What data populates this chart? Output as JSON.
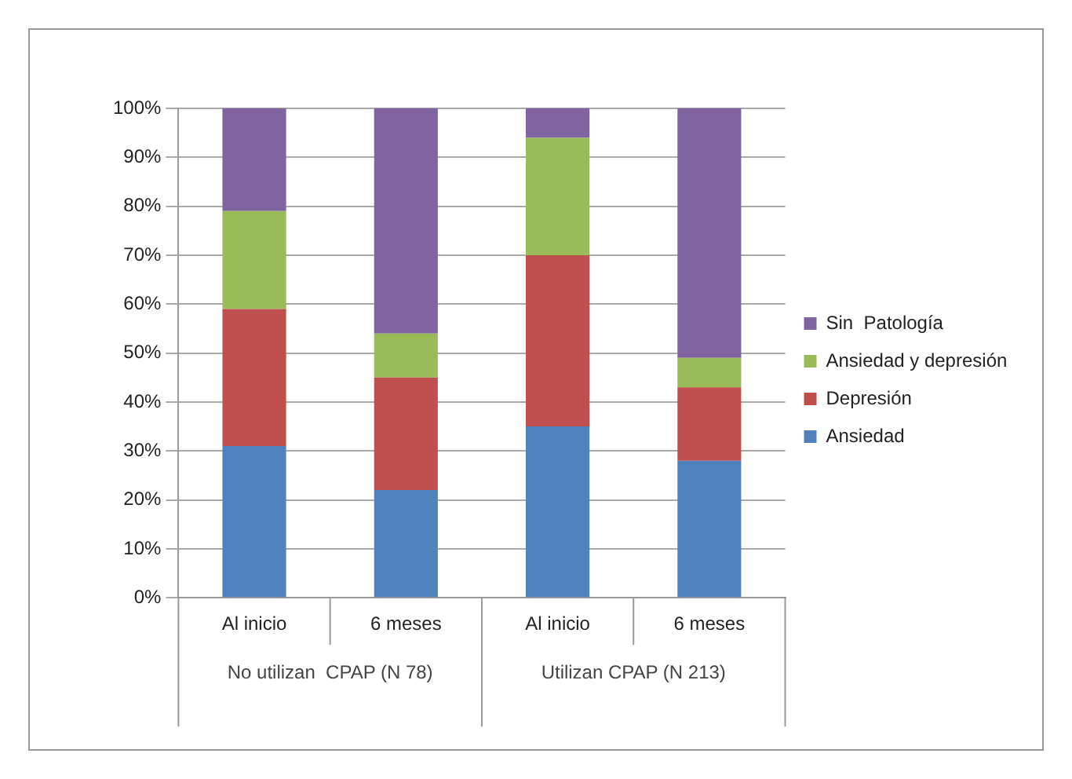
{
  "chart_data": {
    "type": "bar",
    "stacked": true,
    "categories": [
      "Al inicio",
      "6 meses",
      "Al inicio",
      "6 meses"
    ],
    "series": [
      {
        "name": "Ansiedad",
        "color": "#4f81bd",
        "values": [
          31,
          22,
          35,
          28
        ]
      },
      {
        "name": "Depresión",
        "color": "#c0504d",
        "values": [
          28,
          23,
          35,
          15
        ]
      },
      {
        "name": "Ansiedad y depresión",
        "color": "#9bbb59",
        "values": [
          20,
          9,
          24,
          6
        ]
      },
      {
        "name": "Sin  Patología",
        "color": "#8064a2",
        "values": [
          21,
          46,
          6,
          51
        ]
      }
    ],
    "ylim": [
      0,
      100
    ],
    "yticks": [
      {
        "value": 0,
        "label": "0%"
      },
      {
        "value": 10,
        "label": "10%"
      },
      {
        "value": 20,
        "label": "20%"
      },
      {
        "value": 30,
        "label": "30%"
      },
      {
        "value": 40,
        "label": "40%"
      },
      {
        "value": 50,
        "label": "50%"
      },
      {
        "value": 60,
        "label": "60%"
      },
      {
        "value": 70,
        "label": "70%"
      },
      {
        "value": 80,
        "label": "80%"
      },
      {
        "value": 90,
        "label": "90%"
      },
      {
        "value": 100,
        "label": "100%"
      }
    ],
    "grid": "y",
    "legend": "right",
    "annotations": [
      "No utilizan  CPAP (N 78)",
      "Utilizan CPAP (N 213)"
    ]
  }
}
